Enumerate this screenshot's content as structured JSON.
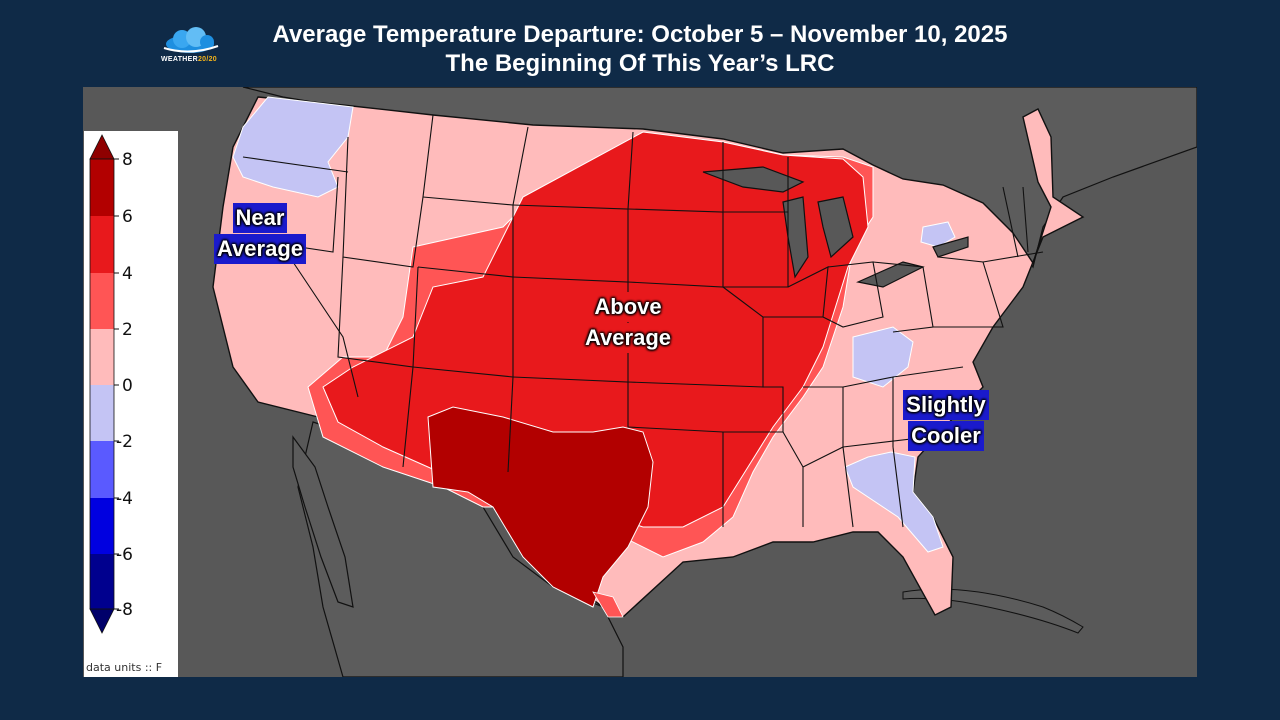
{
  "logo": {
    "text_main": "WEATHER",
    "text_accent": "20/20"
  },
  "title": {
    "line1": "Average Temperature Departure: October 5 – November 10, 2025",
    "line2": "The Beginning Of This Year’s LRC"
  },
  "legend": {
    "units": "data units :: F",
    "ticks": [
      "8",
      "6",
      "4",
      "2",
      "0",
      "-2",
      "-4",
      "-6",
      "-8"
    ],
    "colors": [
      "#b20000",
      "#e8191c",
      "#ff5555",
      "#ffbbbb",
      "#c4c4f4",
      "#5a5aff",
      "#0000e0",
      "#00008e"
    ]
  },
  "annotations": {
    "near_average": [
      "Near",
      "Average"
    ],
    "above_average": [
      "Above",
      "Average"
    ],
    "slightly_cooler": [
      "Slightly",
      "Cooler"
    ]
  },
  "colors": {
    "background": "#0f2a47",
    "map_background": "#585858",
    "warm_1": "#ffbbbb",
    "warm_2": "#ff5555",
    "warm_3": "#e8191c",
    "warm_4": "#b20000",
    "cool_1": "#c4c4f4"
  }
}
